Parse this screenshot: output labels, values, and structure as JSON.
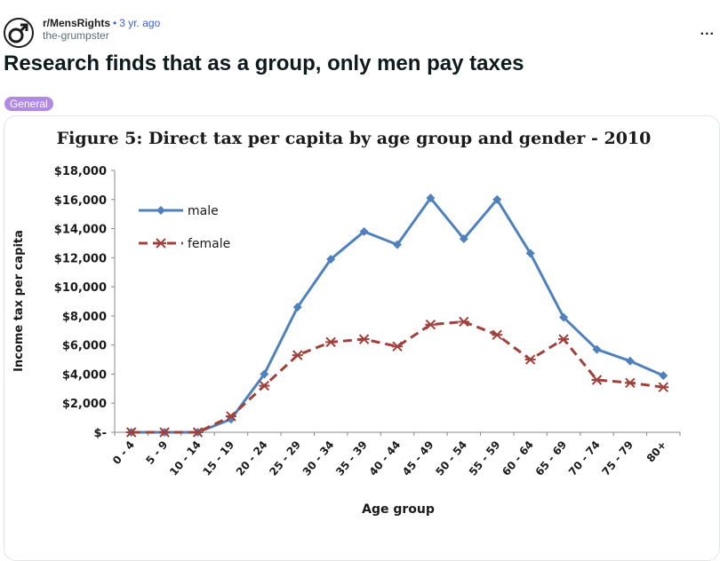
{
  "post": {
    "subreddit": "r/MensRights",
    "separator": "•",
    "time_ago": "3 yr. ago",
    "author": "the-grumpster",
    "more_label": "...",
    "title": "Research finds that as a group, only men pay taxes",
    "flair": "General",
    "avatar_icon": "male-symbol-icon"
  },
  "colors": {
    "flair_bg": "#b08ae6",
    "male_series": "#4f81bd",
    "female_series": "#a0413c",
    "link": "#3d5fd6"
  },
  "chart_data": {
    "type": "line",
    "title": "Figure 5: Direct tax per capita by age group and gender - 2010",
    "xlabel": "Age group",
    "ylabel": "Income tax per capita",
    "categories": [
      "0 - 4",
      "5 - 9",
      "10 - 14",
      "15 - 19",
      "20 - 24",
      "25 - 29",
      "30 - 34",
      "35 - 39",
      "40 - 44",
      "45 - 49",
      "50 - 54",
      "55 - 59",
      "60 - 64",
      "65 - 69",
      "70 - 74",
      "75 - 79",
      "80+"
    ],
    "y_ticks": [
      {
        "value": 0,
        "label": "$-"
      },
      {
        "value": 2000,
        "label": "$2,000"
      },
      {
        "value": 4000,
        "label": "$4,000"
      },
      {
        "value": 6000,
        "label": "$6,000"
      },
      {
        "value": 8000,
        "label": "$8,000"
      },
      {
        "value": 10000,
        "label": "$10,000"
      },
      {
        "value": 12000,
        "label": "$12,000"
      },
      {
        "value": 14000,
        "label": "$14,000"
      },
      {
        "value": 16000,
        "label": "$16,000"
      },
      {
        "value": 18000,
        "label": "$18,000"
      }
    ],
    "ylim": [
      0,
      18000
    ],
    "grid": false,
    "legend_position": "top-left",
    "series": [
      {
        "name": "male",
        "marker": "diamond",
        "line": "solid",
        "color": "#4f81bd",
        "values": [
          0,
          0,
          0,
          900,
          4000,
          8600,
          11900,
          13800,
          12900,
          16100,
          13300,
          16000,
          12300,
          7900,
          5700,
          4900,
          3900
        ]
      },
      {
        "name": "female",
        "marker": "asterisk",
        "line": "dashed",
        "color": "#a0413c",
        "values": [
          0,
          0,
          0,
          1100,
          3200,
          5300,
          6200,
          6400,
          5900,
          7400,
          7600,
          6700,
          5000,
          6400,
          3600,
          3400,
          3100
        ]
      }
    ]
  }
}
